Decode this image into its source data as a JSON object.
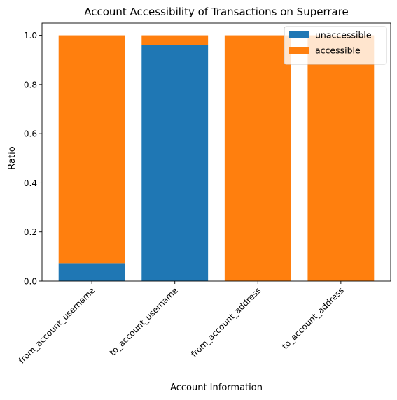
{
  "chart_data": {
    "type": "bar",
    "stacked": true,
    "title": "Account Accessibility of Transactions on Superrare",
    "xlabel": "Account Information",
    "ylabel": "Ratio",
    "ylim": [
      0,
      1.05
    ],
    "yticks": [
      0.0,
      0.2,
      0.4,
      0.6,
      0.8,
      1.0
    ],
    "ytick_labels": [
      "0.0",
      "0.2",
      "0.4",
      "0.6",
      "0.8",
      "1.0"
    ],
    "categories": [
      "from_account_username",
      "to_account_username",
      "from_account_address",
      "to_account_address"
    ],
    "series": [
      {
        "name": "unaccessible",
        "color": "#1f77b4",
        "values": [
          0.073,
          0.96,
          0.0,
          0.0
        ]
      },
      {
        "name": "accessible",
        "color": "#ff7f0e",
        "values": [
          0.927,
          0.04,
          1.0,
          1.0
        ]
      }
    ],
    "legend_position": "top-right",
    "grid": false
  }
}
